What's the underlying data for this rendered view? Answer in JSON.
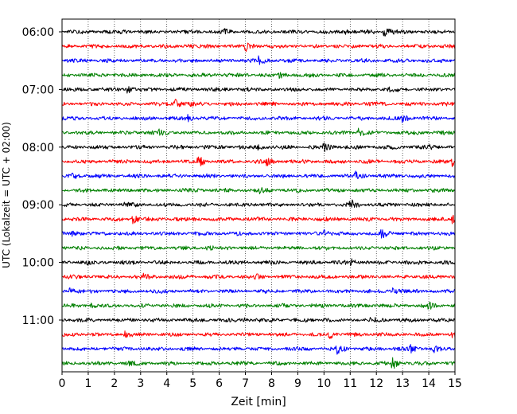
{
  "chart_data": {
    "type": "line",
    "title": "",
    "xlabel": "Zeit  [min]",
    "ylabel": "UTC (Lokalzeit = UTC + 02:00)",
    "xlim": [
      0,
      15
    ],
    "x_ticks": [
      0,
      1,
      2,
      3,
      4,
      5,
      6,
      7,
      8,
      9,
      10,
      11,
      12,
      13,
      14,
      15
    ],
    "x_tick_labels": [
      "0",
      "1",
      "2",
      "3",
      "4",
      "5",
      "6",
      "7",
      "8",
      "9",
      "10",
      "11",
      "12",
      "13",
      "14",
      "15"
    ],
    "y_tick_labels": [
      "06:00",
      "07:00",
      "08:00",
      "09:00",
      "10:00",
      "11:00"
    ],
    "grid": {
      "vertical": true,
      "style": "dotted"
    },
    "trace_colors": [
      "#000000",
      "#ff0000",
      "#0000ff",
      "#008000"
    ],
    "traces": [
      {
        "start": "06:00",
        "events": [
          {
            "t": 12.3,
            "amp": 1.0
          },
          {
            "t": 6.2,
            "amp": 0.35
          },
          {
            "t": 10.8,
            "amp": 0.3
          }
        ]
      },
      {
        "start": "06:15",
        "events": [
          {
            "t": 7.0,
            "amp": 0.85
          },
          {
            "t": 4.7,
            "amp": 0.3
          }
        ]
      },
      {
        "start": "06:30",
        "events": [
          {
            "t": 7.5,
            "amp": 0.55
          }
        ]
      },
      {
        "start": "06:45",
        "events": [
          {
            "t": 8.3,
            "amp": 0.45
          },
          {
            "t": 5.5,
            "amp": 0.25
          }
        ]
      },
      {
        "start": "07:00",
        "events": [
          {
            "t": 2.5,
            "amp": 0.6
          },
          {
            "t": 12.5,
            "amp": 0.25
          }
        ]
      },
      {
        "start": "07:15",
        "events": [
          {
            "t": 4.3,
            "amp": 1.0
          },
          {
            "t": 4.8,
            "amp": 0.5
          }
        ]
      },
      {
        "start": "07:30",
        "events": [
          {
            "t": 13.0,
            "amp": 0.75
          },
          {
            "t": 4.8,
            "amp": 0.45
          }
        ]
      },
      {
        "start": "07:45",
        "events": [
          {
            "t": 3.7,
            "amp": 0.55
          },
          {
            "t": 11.3,
            "amp": 0.65
          }
        ]
      },
      {
        "start": "08:00",
        "events": [
          {
            "t": 10.0,
            "amp": 0.75
          },
          {
            "t": 7.5,
            "amp": 0.45
          },
          {
            "t": 14.0,
            "amp": 0.3
          }
        ]
      },
      {
        "start": "08:15",
        "events": [
          {
            "t": 5.2,
            "amp": 1.0
          },
          {
            "t": 7.8,
            "amp": 0.6
          },
          {
            "t": 14.9,
            "amp": 0.75
          }
        ]
      },
      {
        "start": "08:30",
        "events": [
          {
            "t": 11.2,
            "amp": 0.65
          },
          {
            "t": 0.4,
            "amp": 0.45
          }
        ]
      },
      {
        "start": "08:45",
        "events": [
          {
            "t": 7.5,
            "amp": 0.35
          }
        ]
      },
      {
        "start": "09:00",
        "events": [
          {
            "t": 11.0,
            "amp": 0.85
          },
          {
            "t": 2.4,
            "amp": 0.35
          }
        ]
      },
      {
        "start": "09:15",
        "events": [
          {
            "t": 2.7,
            "amp": 0.7
          },
          {
            "t": 14.9,
            "amp": 0.7
          }
        ]
      },
      {
        "start": "09:30",
        "events": [
          {
            "t": 12.2,
            "amp": 0.9
          },
          {
            "t": 10.0,
            "amp": 0.65
          },
          {
            "t": 0.4,
            "amp": 0.55
          }
        ]
      },
      {
        "start": "09:45",
        "events": [
          {
            "t": 5.5,
            "amp": 0.3
          }
        ]
      },
      {
        "start": "10:00",
        "events": [
          {
            "t": 11.0,
            "amp": 0.5
          },
          {
            "t": 1.0,
            "amp": 0.35
          }
        ]
      },
      {
        "start": "10:15",
        "events": [
          {
            "t": 3.1,
            "amp": 0.4
          },
          {
            "t": 7.4,
            "amp": 0.35
          }
        ]
      },
      {
        "start": "10:30",
        "events": [
          {
            "t": 0.3,
            "amp": 0.5
          },
          {
            "t": 12.6,
            "amp": 0.55
          }
        ]
      },
      {
        "start": "10:45",
        "events": [
          {
            "t": 14.0,
            "amp": 0.5
          },
          {
            "t": 1.1,
            "amp": 0.3
          }
        ]
      },
      {
        "start": "11:00",
        "events": [
          {
            "t": 11.8,
            "amp": 0.5
          },
          {
            "t": 6.9,
            "amp": 0.3
          }
        ]
      },
      {
        "start": "11:15",
        "events": [
          {
            "t": 10.2,
            "amp": 0.7
          },
          {
            "t": 2.4,
            "amp": 0.45
          },
          {
            "t": 14.9,
            "amp": 0.35
          }
        ]
      },
      {
        "start": "11:30",
        "events": [
          {
            "t": 10.5,
            "amp": 0.95
          },
          {
            "t": 13.3,
            "amp": 0.6
          },
          {
            "t": 14.2,
            "amp": 0.55
          }
        ]
      },
      {
        "start": "11:45",
        "events": [
          {
            "t": 12.6,
            "amp": 0.95
          },
          {
            "t": 2.6,
            "amp": 0.45
          }
        ]
      }
    ]
  }
}
